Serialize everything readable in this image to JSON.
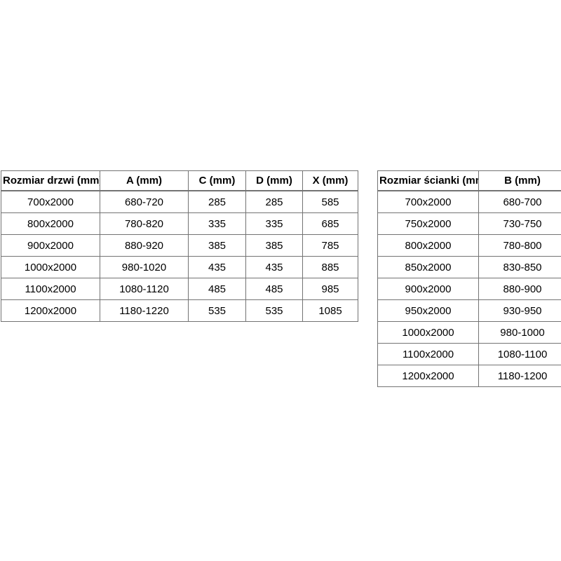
{
  "page": {
    "background_color": "#ffffff",
    "border_color": "#737373",
    "text_color": "#000000"
  },
  "tables": {
    "doors": {
      "headers": [
        "Rozmiar drzwi (mm)",
        "A (mm)",
        "C (mm)",
        "D (mm)",
        "X (mm)"
      ],
      "rows": [
        [
          "700x2000",
          "680-720",
          "285",
          "285",
          "585"
        ],
        [
          "800x2000",
          "780-820",
          "335",
          "335",
          "685"
        ],
        [
          "900x2000",
          "880-920",
          "385",
          "385",
          "785"
        ],
        [
          "1000x2000",
          "980-1020",
          "435",
          "435",
          "885"
        ],
        [
          "1100x2000",
          "1080-1120",
          "485",
          "485",
          "985"
        ],
        [
          "1200x2000",
          "1180-1220",
          "535",
          "535",
          "1085"
        ]
      ]
    },
    "walls": {
      "headers": [
        "Rozmiar ścianki (mm)",
        "B (mm)"
      ],
      "rows": [
        [
          "700x2000",
          "680-700"
        ],
        [
          "750x2000",
          "730-750"
        ],
        [
          "800x2000",
          "780-800"
        ],
        [
          "850x2000",
          "830-850"
        ],
        [
          "900x2000",
          "880-900"
        ],
        [
          "950x2000",
          "930-950"
        ],
        [
          "1000x2000",
          "980-1000"
        ],
        [
          "1100x2000",
          "1080-1100"
        ],
        [
          "1200x2000",
          "1180-1200"
        ]
      ]
    }
  }
}
